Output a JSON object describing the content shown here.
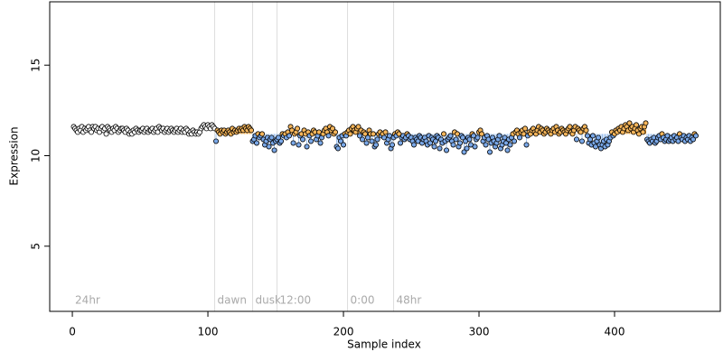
{
  "chart_data": {
    "type": "scatter",
    "x_label": "Sample index",
    "y_label": "Expression",
    "xlim": [
      -16.7,
      478
    ],
    "ylim": [
      1.4,
      18.5
    ],
    "xticks": [
      0,
      100,
      200,
      300,
      400
    ],
    "yticks": [
      5,
      10,
      15
    ],
    "vlines": [
      105,
      133,
      151,
      203,
      237
    ],
    "annotation_y": 2,
    "annotations": [
      {
        "x": 0,
        "label": "24hr"
      },
      {
        "x": 105,
        "label": "dawn"
      },
      {
        "x": 133,
        "label": "dusk"
      },
      {
        "x": 151,
        "label": "12:00"
      },
      {
        "x": 203,
        "label": "0:00"
      },
      {
        "x": 237,
        "label": "48hr"
      }
    ],
    "stem_baseline": 11.2,
    "stem_start_index": 105,
    "colors": {
      "above": "#f5b55a",
      "below": "#7aa8e8",
      "stem_above": "#f0a030",
      "stem_below": "#9cc0ee",
      "plain": "#ffffff",
      "vline": "#dddddd"
    },
    "values": [
      11.6,
      11.5,
      11.4,
      11.3,
      11.5,
      11.4,
      11.6,
      11.3,
      11.5,
      11.4,
      11.5,
      11.6,
      11.4,
      11.3,
      11.6,
      11.5,
      11.6,
      11.4,
      11.5,
      11.3,
      11.5,
      11.6,
      11.4,
      11.5,
      11.2,
      11.6,
      11.5,
      11.4,
      11.3,
      11.5,
      11.4,
      11.6,
      11.5,
      11.3,
      11.4,
      11.5,
      11.5,
      11.4,
      11.3,
      11.5,
      11.4,
      11.2,
      11.3,
      11.2,
      11.4,
      11.3,
      11.5,
      11.4,
      11.3,
      11.4,
      11.4,
      11.5,
      11.3,
      11.4,
      11.5,
      11.3,
      11.4,
      11.4,
      11.5,
      11.3,
      11.4,
      11.5,
      11.3,
      11.6,
      11.5,
      11.4,
      11.5,
      11.3,
      11.4,
      11.5,
      11.3,
      11.4,
      11.5,
      11.4,
      11.3,
      11.4,
      11.5,
      11.3,
      11.4,
      11.5,
      11.3,
      11.4,
      11.3,
      11.5,
      11.4,
      11.2,
      11.3,
      11.2,
      11.4,
      11.3,
      11.2,
      11.3,
      11.2,
      11.3,
      11.5,
      11.6,
      11.7,
      11.6,
      11.5,
      11.7,
      11.6,
      11.5,
      11.7,
      11.6,
      11.5,
      10.8,
      11.4,
      11.3,
      11.2,
      11.4,
      11.3,
      11.4,
      11.2,
      11.3,
      11.4,
      11.3,
      11.2,
      11.5,
      11.3,
      11.4,
      11.3,
      11.4,
      11.5,
      11.4,
      11.5,
      11.4,
      11.6,
      11.5,
      11.4,
      11.6,
      11.5,
      11.4,
      10.8,
      10.9,
      11.1,
      10.7,
      11.2,
      11.0,
      11.1,
      11.2,
      10.9,
      10.6,
      10.8,
      11.0,
      10.5,
      10.9,
      11.0,
      10.7,
      10.3,
      10.8,
      10.9,
      11.0,
      10.7,
      10.8,
      11.2,
      11.1,
      11.2,
      11.0,
      11.3,
      11.1,
      11.6,
      11.4,
      10.7,
      11.2,
      11.3,
      11.5,
      10.6,
      11.1,
      11.2,
      10.9,
      11.4,
      11.2,
      10.5,
      11.3,
      11.1,
      10.8,
      11.2,
      11.4,
      11.3,
      10.9,
      11.1,
      11.3,
      10.7,
      11.0,
      11.2,
      11.4,
      11.5,
      11.3,
      11.1,
      11.6,
      11.4,
      11.5,
      11.2,
      11.3,
      10.5,
      10.4,
      11.0,
      10.8,
      11.1,
      10.6,
      11.2,
      11.1,
      11.3,
      11.4,
      11.2,
      11.5,
      11.6,
      11.4,
      11.3,
      11.5,
      11.6,
      11.1,
      11.4,
      10.9,
      11.3,
      11.2,
      10.7,
      11.0,
      11.4,
      11.2,
      10.8,
      11.2,
      10.5,
      10.6,
      10.9,
      11.2,
      11.3,
      11.1,
      11.2,
      11.0,
      11.3,
      10.7,
      10.9,
      11.1,
      10.4,
      10.6,
      11.0,
      11.2,
      11.1,
      11.3,
      11.2,
      10.7,
      11.0,
      11.1,
      10.9,
      11.0,
      11.2,
      11.1,
      10.9,
      11.0,
      10.8,
      10.6,
      11.0,
      10.9,
      10.8,
      11.1,
      11.0,
      10.7,
      10.9,
      11.0,
      10.8,
      10.6,
      11.1,
      10.7,
      11.0,
      10.9,
      10.5,
      10.8,
      11.1,
      11.0,
      10.4,
      10.9,
      10.7,
      11.2,
      10.8,
      10.3,
      10.9,
      11.0,
      11.1,
      10.8,
      10.6,
      11.3,
      10.9,
      11.2,
      10.5,
      10.7,
      11.1,
      11.0,
      10.2,
      10.8,
      10.4,
      11.0,
      10.9,
      10.6,
      11.2,
      11.1,
      10.5,
      10.9,
      11.0,
      11.3,
      11.4,
      11.2,
      10.8,
      11.0,
      10.6,
      11.1,
      10.9,
      10.2,
      10.7,
      11.0,
      10.8,
      10.5,
      10.7,
      10.9,
      11.1,
      10.4,
      10.6,
      10.8,
      11.0,
      10.7,
      10.3,
      10.9,
      10.6,
      11.0,
      11.2,
      10.8,
      11.3,
      11.4,
      11.2,
      11.0,
      11.3,
      11.4,
      11.2,
      11.5,
      10.6,
      11.1,
      11.3,
      11.2,
      11.4,
      11.5,
      11.3,
      11.2,
      11.4,
      11.6,
      11.3,
      11.5,
      11.4,
      11.2,
      11.3,
      11.5,
      11.4,
      11.3,
      11.2,
      11.4,
      11.5,
      11.3,
      11.6,
      11.4,
      11.2,
      11.3,
      11.5,
      11.4,
      11.3,
      11.2,
      11.4,
      11.5,
      11.6,
      11.3,
      11.2,
      11.4,
      11.6,
      10.9,
      11.5,
      11.4,
      11.3,
      10.8,
      11.5,
      11.6,
      11.4,
      11.1,
      10.7,
      10.9,
      10.6,
      11.1,
      10.7,
      10.5,
      10.8,
      11.0,
      10.6,
      10.4,
      10.6,
      10.8,
      10.5,
      10.9,
      10.6,
      10.8,
      11.0,
      11.3,
      11.1,
      11.2,
      11.4,
      11.3,
      11.5,
      11.4,
      11.6,
      11.3,
      11.5,
      11.7,
      11.6,
      11.4,
      11.8,
      11.5,
      11.6,
      11.3,
      11.5,
      11.7,
      11.4,
      11.2,
      11.5,
      11.6,
      11.3,
      11.6,
      11.8,
      10.9,
      10.8,
      10.7,
      10.9,
      10.8,
      11.0,
      10.7,
      10.8,
      11.0,
      11.1,
      10.9,
      11.2,
      11.0,
      10.8,
      10.9,
      11.1,
      10.8,
      10.9,
      11.0,
      10.8,
      11.1,
      10.9,
      11.0,
      10.8,
      11.2,
      11.0,
      10.9,
      11.1,
      10.8,
      11.0,
      10.9,
      11.1,
      10.8,
      11.0,
      10.9,
      11.2,
      11.1
    ]
  }
}
